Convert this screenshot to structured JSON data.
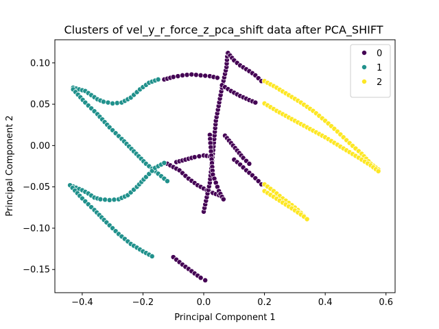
{
  "chart_data": {
    "type": "scatter",
    "title": "Clusters of vel_y_r_force_z_pca_shift data after PCA_SHIFT",
    "xlabel": "Principal Component 1",
    "ylabel": "Principal Component 2",
    "xlim": [
      -0.49,
      0.63
    ],
    "ylim": [
      -0.178,
      0.128
    ],
    "xticks": [
      -0.4,
      -0.2,
      0.0,
      0.2,
      0.4,
      0.6
    ],
    "xtick_labels": [
      "−0.4",
      "−0.2",
      "0.0",
      "0.2",
      "0.4",
      "0.6"
    ],
    "yticks": [
      -0.15,
      -0.1,
      -0.05,
      0.0,
      0.05,
      0.1
    ],
    "ytick_labels": [
      "−0.15",
      "−0.10",
      "−0.05",
      "0.00",
      "0.05",
      "0.10"
    ],
    "grid": false,
    "legend": {
      "position": "top-right",
      "title": "",
      "entries": [
        "0",
        "1",
        "2"
      ]
    },
    "colors": {
      "0": "#440154",
      "1": "#21918c",
      "2": "#fde725"
    },
    "marker_edge": "#ffffff",
    "series": [
      {
        "name": "0",
        "segments": [
          [
            [
              -0.13,
              0.08
            ],
            [
              -0.1,
              0.083
            ],
            [
              -0.07,
              0.085
            ],
            [
              -0.04,
              0.086
            ],
            [
              -0.01,
              0.085
            ],
            [
              0.02,
              0.084
            ],
            [
              0.045,
              0.082
            ]
          ],
          [
            [
              -0.09,
              -0.02
            ],
            [
              -0.06,
              -0.017
            ],
            [
              -0.03,
              -0.014
            ],
            [
              0.0,
              -0.012
            ],
            [
              0.02,
              -0.013
            ]
          ],
          [
            [
              -0.12,
              -0.022
            ],
            [
              -0.08,
              -0.03
            ],
            [
              -0.05,
              -0.04
            ],
            [
              -0.02,
              -0.048
            ],
            [
              0.02,
              -0.056
            ],
            [
              0.05,
              -0.06
            ]
          ],
          [
            [
              -0.1,
              -0.135
            ],
            [
              -0.07,
              -0.144
            ],
            [
              -0.04,
              -0.152
            ],
            [
              -0.01,
              -0.16
            ],
            [
              0.005,
              -0.163
            ]
          ],
          [
            [
              0.0,
              -0.08
            ],
            [
              0.02,
              -0.045
            ],
            [
              0.03,
              -0.01
            ],
            [
              0.04,
              0.03
            ],
            [
              0.06,
              0.07
            ],
            [
              0.075,
              0.095
            ],
            [
              0.078,
              0.112
            ]
          ],
          [
            [
              0.08,
              0.112
            ],
            [
              0.1,
              0.103
            ],
            [
              0.12,
              0.097
            ],
            [
              0.15,
              0.09
            ],
            [
              0.17,
              0.085
            ],
            [
              0.19,
              0.078
            ]
          ],
          [
            [
              0.02,
              0.013
            ],
            [
              0.025,
              -0.012
            ],
            [
              0.03,
              -0.035
            ],
            [
              0.04,
              -0.045
            ],
            [
              0.05,
              -0.055
            ],
            [
              0.06,
              -0.062
            ],
            [
              0.065,
              -0.065
            ]
          ],
          [
            [
              0.1,
              -0.017
            ],
            [
              0.12,
              -0.023
            ],
            [
              0.14,
              -0.03
            ],
            [
              0.16,
              -0.036
            ],
            [
              0.18,
              -0.043
            ],
            [
              0.19,
              -0.047
            ]
          ],
          [
            [
              0.06,
              0.073
            ],
            [
              0.09,
              0.066
            ],
            [
              0.12,
              0.06
            ],
            [
              0.15,
              0.055
            ],
            [
              0.17,
              0.052
            ]
          ],
          [
            [
              0.07,
              0.012
            ],
            [
              0.09,
              0.003
            ],
            [
              0.11,
              -0.006
            ],
            [
              0.13,
              -0.015
            ],
            [
              0.15,
              -0.022
            ]
          ]
        ]
      },
      {
        "name": "1",
        "segments": [
          [
            [
              -0.43,
              0.07
            ],
            [
              -0.41,
              0.068
            ],
            [
              -0.39,
              0.066
            ],
            [
              -0.37,
              0.061
            ],
            [
              -0.35,
              0.056
            ],
            [
              -0.33,
              0.053
            ],
            [
              -0.3,
              0.051
            ],
            [
              -0.27,
              0.052
            ],
            [
              -0.24,
              0.058
            ],
            [
              -0.21,
              0.068
            ],
            [
              -0.18,
              0.076
            ],
            [
              -0.15,
              0.08
            ]
          ],
          [
            [
              -0.43,
              0.068
            ],
            [
              -0.39,
              0.052
            ],
            [
              -0.35,
              0.038
            ],
            [
              -0.31,
              0.022
            ],
            [
              -0.27,
              0.008
            ],
            [
              -0.23,
              -0.007
            ],
            [
              -0.19,
              -0.022
            ],
            [
              -0.15,
              -0.034
            ],
            [
              -0.12,
              -0.043
            ]
          ],
          [
            [
              -0.44,
              -0.048
            ],
            [
              -0.42,
              -0.051
            ],
            [
              -0.4,
              -0.054
            ],
            [
              -0.38,
              -0.058
            ],
            [
              -0.36,
              -0.063
            ],
            [
              -0.34,
              -0.065
            ],
            [
              -0.31,
              -0.066
            ],
            [
              -0.28,
              -0.065
            ],
            [
              -0.25,
              -0.06
            ],
            [
              -0.22,
              -0.05
            ],
            [
              -0.19,
              -0.038
            ],
            [
              -0.16,
              -0.027
            ],
            [
              -0.13,
              -0.021
            ]
          ],
          [
            [
              -0.44,
              -0.048
            ],
            [
              -0.4,
              -0.064
            ],
            [
              -0.36,
              -0.078
            ],
            [
              -0.32,
              -0.093
            ],
            [
              -0.28,
              -0.107
            ],
            [
              -0.24,
              -0.119
            ],
            [
              -0.2,
              -0.128
            ],
            [
              -0.17,
              -0.134
            ]
          ]
        ]
      },
      {
        "name": "2",
        "segments": [
          [
            [
              0.2,
              0.078
            ],
            [
              0.24,
              0.07
            ],
            [
              0.28,
              0.061
            ],
            [
              0.32,
              0.052
            ],
            [
              0.36,
              0.042
            ],
            [
              0.4,
              0.03
            ],
            [
              0.44,
              0.017
            ],
            [
              0.48,
              0.003
            ],
            [
              0.52,
              -0.01
            ],
            [
              0.55,
              -0.022
            ],
            [
              0.575,
              -0.029
            ]
          ],
          [
            [
              0.2,
              0.051
            ],
            [
              0.24,
              0.042
            ],
            [
              0.28,
              0.034
            ],
            [
              0.32,
              0.026
            ],
            [
              0.36,
              0.018
            ],
            [
              0.4,
              0.01
            ],
            [
              0.44,
              0.001
            ],
            [
              0.48,
              -0.008
            ],
            [
              0.52,
              -0.017
            ],
            [
              0.55,
              -0.024
            ],
            [
              0.575,
              -0.031
            ]
          ],
          [
            [
              0.2,
              -0.047
            ],
            [
              0.23,
              -0.055
            ],
            [
              0.26,
              -0.064
            ],
            [
              0.29,
              -0.072
            ],
            [
              0.31,
              -0.078
            ],
            [
              0.33,
              -0.085
            ],
            [
              0.34,
              -0.089
            ]
          ],
          [
            [
              0.2,
              -0.055
            ],
            [
              0.23,
              -0.062
            ],
            [
              0.26,
              -0.069
            ],
            [
              0.29,
              -0.076
            ],
            [
              0.31,
              -0.081
            ],
            [
              0.33,
              -0.086
            ],
            [
              0.34,
              -0.089
            ]
          ]
        ]
      }
    ]
  }
}
